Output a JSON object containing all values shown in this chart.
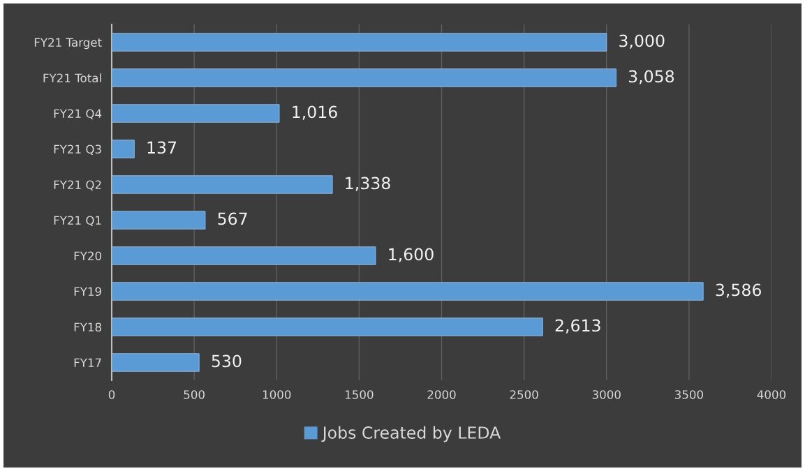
{
  "chart_data": {
    "type": "bar",
    "orientation": "horizontal",
    "categories": [
      "FY21 Target",
      "FY21 Total",
      "FY21 Q4",
      "FY21 Q3",
      "FY21 Q2",
      "FY21 Q1",
      "FY20",
      "FY19",
      "FY18",
      "FY17"
    ],
    "series": [
      {
        "name": "Jobs Created by LEDA",
        "color": "#5b9bd5",
        "values": [
          3000,
          3058,
          1016,
          137,
          1338,
          567,
          1600,
          3586,
          2613,
          530
        ]
      }
    ],
    "value_labels": [
      "3,000",
      "3,058",
      "1,016",
      "137",
      "1,338",
      "567",
      "1,600",
      "3,586",
      "2,613",
      "530"
    ],
    "xlim": [
      0,
      4000
    ],
    "xticks": [
      0,
      500,
      1000,
      1500,
      2000,
      2500,
      3000,
      3500,
      4000
    ],
    "grid": "x",
    "legend": "bottom"
  }
}
